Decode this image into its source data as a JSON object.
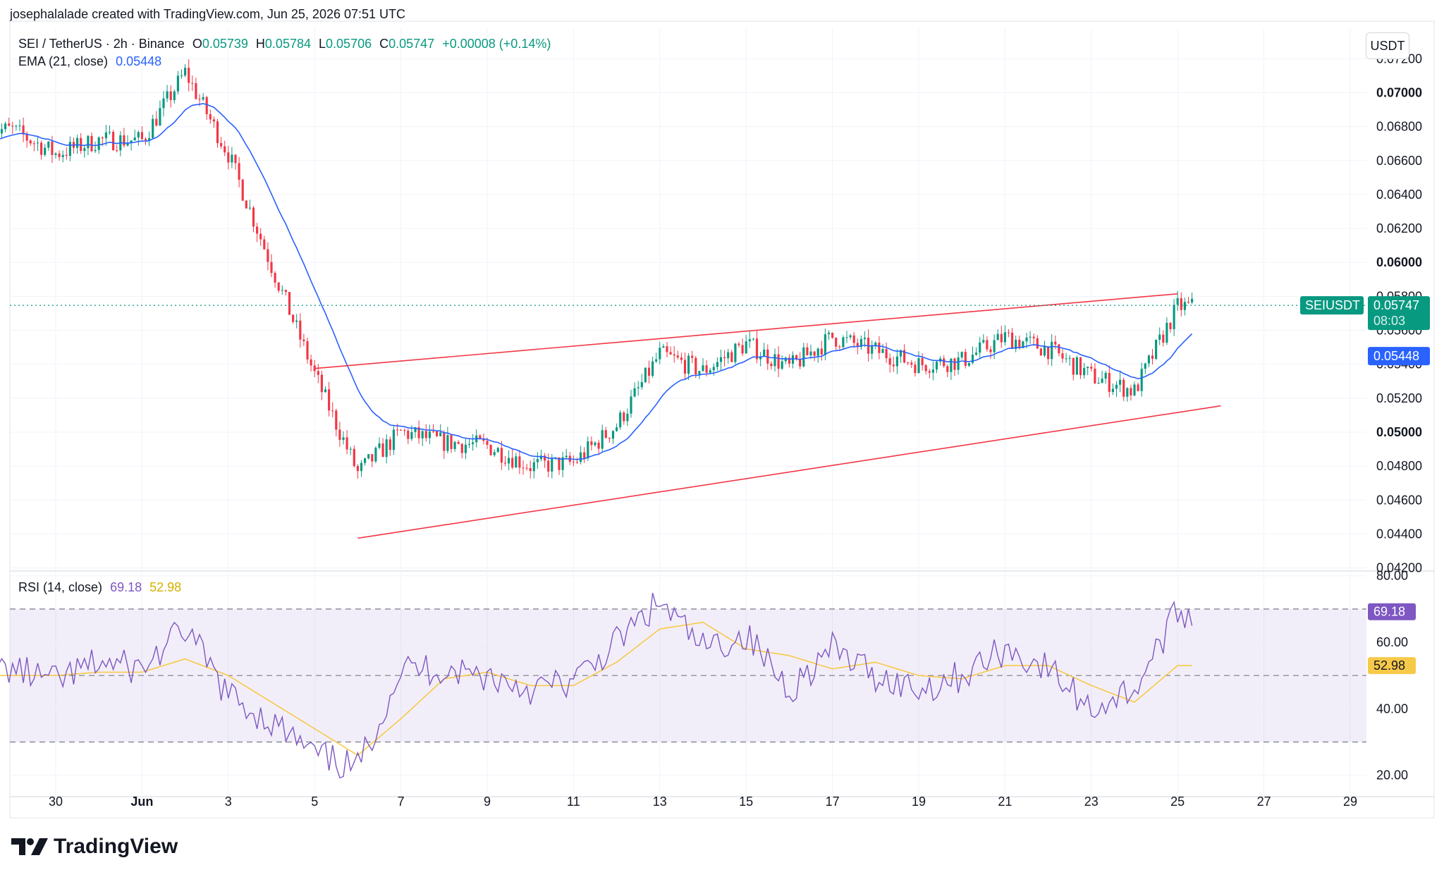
{
  "header": {
    "credit": "josephalalade created with TradingView.com, Jun 25, 2026 07:51 UTC"
  },
  "legend": {
    "symbol": "SEI / TetherUS · 2h · Binance",
    "o_label": "O",
    "o_value": "0.05739",
    "h_label": "H",
    "h_value": "0.05784",
    "l_label": "L",
    "l_value": "0.05706",
    "c_label": "C",
    "c_value": "0.05747",
    "change": "+0.00008 (+0.14%)",
    "ema_label": "EMA (21, close)",
    "ema_value": "0.05448"
  },
  "rsi_legend": {
    "label": "RSI (14, close)",
    "rsi_value": "69.18",
    "ma_value": "52.98"
  },
  "currency_button": "USDT",
  "footer": {
    "brand": "TradingView"
  },
  "colors": {
    "up": "#089981",
    "down": "#f23645",
    "ema": "#2962ff",
    "trendline": "#f23645",
    "rsi": "#7e57c2",
    "rsi_ma": "#f7c948",
    "rsi_band": "#7e57c2",
    "price_tag": "#089981"
  },
  "chart_data": [
    {
      "type": "candlestick",
      "symbol": "SEIUSDT",
      "interval": "2h",
      "x_ticks": [
        "30",
        "Jun",
        "3",
        "5",
        "7",
        "9",
        "11",
        "13",
        "15",
        "17",
        "19",
        "21",
        "23",
        "25",
        "27",
        "29"
      ],
      "x_tick_dates": [
        "2026-05-30",
        "2026-06-01",
        "2026-06-03",
        "2026-06-05",
        "2026-06-07",
        "2026-06-09",
        "2026-06-11",
        "2026-06-13",
        "2026-06-15",
        "2026-06-17",
        "2026-06-19",
        "2026-06-21",
        "2026-06-23",
        "2026-06-25",
        "2026-06-27",
        "2026-06-29"
      ],
      "x_start": "2026-05-29",
      "y_ticks": [
        "0.07200",
        "0.07000",
        "0.06800",
        "0.06600",
        "0.06400",
        "0.06200",
        "0.06000",
        "0.05800",
        "0.05600",
        "0.05400",
        "0.05200",
        "0.05000",
        "0.04800",
        "0.04600",
        "0.04400",
        "0.04200"
      ],
      "y_bold_ticks": [
        "0.07000",
        "0.06000",
        "0.05000"
      ],
      "ylim": [
        0.0419,
        0.0738
      ],
      "last_price": {
        "label": "SEIUSDT",
        "value": "0.05747",
        "countdown": "08:03"
      },
      "ema_last": "0.05448",
      "close_path_daily": [
        [
          "2026-05-29",
          0.0678
        ],
        [
          "2026-05-30",
          0.0664
        ],
        [
          "2026-05-31",
          0.0672
        ],
        [
          "2026-06-01",
          0.0672
        ],
        [
          "2026-06-02",
          0.0712
        ],
        [
          "2026-06-03",
          0.0664
        ],
        [
          "2026-06-04",
          0.0598
        ],
        [
          "2026-06-05",
          0.0534
        ],
        [
          "2026-06-06",
          0.0476
        ],
        [
          "2026-06-07",
          0.05
        ],
        [
          "2026-06-08",
          0.0494
        ],
        [
          "2026-06-09",
          0.0492
        ],
        [
          "2026-06-10",
          0.048
        ],
        [
          "2026-06-11",
          0.0482
        ],
        [
          "2026-06-12",
          0.0504
        ],
        [
          "2026-06-13",
          0.0546
        ],
        [
          "2026-06-14",
          0.0536
        ],
        [
          "2026-06-15",
          0.0552
        ],
        [
          "2026-06-16",
          0.0538
        ],
        [
          "2026-06-17",
          0.0556
        ],
        [
          "2026-06-18",
          0.0548
        ],
        [
          "2026-06-19",
          0.054
        ],
        [
          "2026-06-20",
          0.0542
        ],
        [
          "2026-06-21",
          0.0556
        ],
        [
          "2026-06-22",
          0.0549
        ],
        [
          "2026-06-23",
          0.0533
        ],
        [
          "2026-06-24",
          0.0524
        ],
        [
          "2026-06-25",
          0.0574
        ]
      ],
      "trendlines": [
        {
          "name": "upper",
          "from": [
            "2026-06-05",
            0.05375
          ],
          "to": [
            "2026-06-25",
            0.05815
          ]
        },
        {
          "name": "lower",
          "from": [
            "2026-06-06",
            0.04375
          ],
          "to": [
            "2026-06-26",
            0.05155
          ]
        }
      ]
    },
    {
      "type": "line",
      "indicator": "RSI (14, close)",
      "y_ticks": [
        "80.00",
        "60.00",
        "40.00",
        "20.00"
      ],
      "ylim": [
        14,
        81
      ],
      "band": [
        30,
        70
      ],
      "midline": 50,
      "rsi_last": "69.18",
      "ma_last": "52.98",
      "rsi_path_daily": [
        [
          "2026-05-29",
          52
        ],
        [
          "2026-05-30",
          48
        ],
        [
          "2026-05-31",
          54
        ],
        [
          "2026-06-01",
          52
        ],
        [
          "2026-06-02",
          64
        ],
        [
          "2026-06-03",
          44
        ],
        [
          "2026-06-04",
          36
        ],
        [
          "2026-06-05",
          26
        ],
        [
          "2026-06-06",
          22
        ],
        [
          "2026-06-07",
          52
        ],
        [
          "2026-06-08",
          52
        ],
        [
          "2026-06-09",
          50
        ],
        [
          "2026-06-10",
          46
        ],
        [
          "2026-06-11",
          48
        ],
        [
          "2026-06-12",
          60
        ],
        [
          "2026-06-13",
          72
        ],
        [
          "2026-06-14",
          58
        ],
        [
          "2026-06-15",
          62
        ],
        [
          "2026-06-16",
          46
        ],
        [
          "2026-06-17",
          58
        ],
        [
          "2026-06-18",
          50
        ],
        [
          "2026-06-19",
          46
        ],
        [
          "2026-06-20",
          50
        ],
        [
          "2026-06-21",
          58
        ],
        [
          "2026-06-22",
          52
        ],
        [
          "2026-06-23",
          40
        ],
        [
          "2026-06-24",
          46
        ],
        [
          "2026-06-25",
          69
        ]
      ],
      "ma_path_daily": [
        [
          "2026-05-29",
          50
        ],
        [
          "2026-05-30",
          50
        ],
        [
          "2026-05-31",
          51
        ],
        [
          "2026-06-01",
          51
        ],
        [
          "2026-06-02",
          55
        ],
        [
          "2026-06-03",
          50
        ],
        [
          "2026-06-04",
          42
        ],
        [
          "2026-06-05",
          34
        ],
        [
          "2026-06-06",
          26
        ],
        [
          "2026-06-07",
          37
        ],
        [
          "2026-06-08",
          49
        ],
        [
          "2026-06-09",
          51
        ],
        [
          "2026-06-10",
          47
        ],
        [
          "2026-06-11",
          47
        ],
        [
          "2026-06-12",
          54
        ],
        [
          "2026-06-13",
          64
        ],
        [
          "2026-06-14",
          66
        ],
        [
          "2026-06-15",
          58
        ],
        [
          "2026-06-16",
          56
        ],
        [
          "2026-06-17",
          52
        ],
        [
          "2026-06-18",
          54
        ],
        [
          "2026-06-19",
          50
        ],
        [
          "2026-06-20",
          49
        ],
        [
          "2026-06-21",
          53
        ],
        [
          "2026-06-22",
          53
        ],
        [
          "2026-06-23",
          47
        ],
        [
          "2026-06-24",
          42
        ],
        [
          "2026-06-25",
          53
        ]
      ]
    }
  ]
}
